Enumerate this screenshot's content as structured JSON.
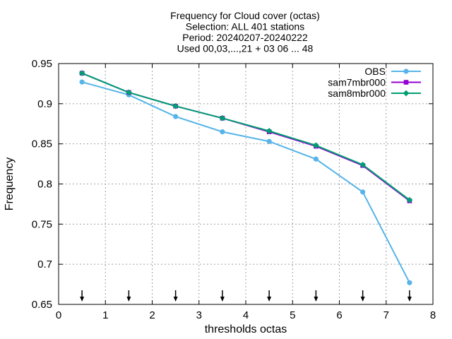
{
  "chart_data": {
    "type": "line",
    "title_lines": [
      "Frequency  for Cloud cover (octas)",
      "Selection: ALL    401 stations",
      "Period: 20240207-20240222",
      "Used 00,03,...,21 + 03 06 ... 48"
    ],
    "xlabel": "thresholds octas",
    "ylabel": "Frequency",
    "xlim": [
      0,
      8
    ],
    "ylim": [
      0.65,
      0.95
    ],
    "xticks": [
      0,
      1,
      2,
      3,
      4,
      5,
      6,
      7,
      8
    ],
    "yticks": [
      0.65,
      0.7,
      0.75,
      0.8,
      0.85,
      0.9,
      0.95
    ],
    "xtick_labels": [
      "0",
      "1",
      "2",
      "3",
      "4",
      "5",
      "6",
      "7",
      "8"
    ],
    "ytick_labels": [
      "0.65",
      "0.7",
      "0.75",
      "0.8",
      "0.85",
      "0.9",
      "0.95"
    ],
    "grid": true,
    "legend_position": "top-right",
    "x": [
      0.5,
      1.5,
      2.5,
      3.5,
      4.5,
      5.5,
      6.5,
      7.5
    ],
    "series": [
      {
        "name": "OBS",
        "color": "#56b4e9",
        "marker": "circle",
        "values": [
          0.927,
          0.911,
          0.884,
          0.865,
          0.853,
          0.831,
          0.79,
          0.677
        ]
      },
      {
        "name": "sam7mbr000",
        "color": "#9400d3",
        "marker": "square",
        "values": [
          0.938,
          0.914,
          0.897,
          0.882,
          0.865,
          0.847,
          0.823,
          0.779
        ]
      },
      {
        "name": "sam8mbr000",
        "color": "#009e73",
        "marker": "diamond",
        "values": [
          0.938,
          0.914,
          0.897,
          0.882,
          0.866,
          0.848,
          0.824,
          0.78
        ]
      }
    ],
    "arrow_markers_x": [
      0.5,
      1.5,
      2.5,
      3.5,
      4.5,
      5.5,
      6.5,
      7.5
    ]
  }
}
